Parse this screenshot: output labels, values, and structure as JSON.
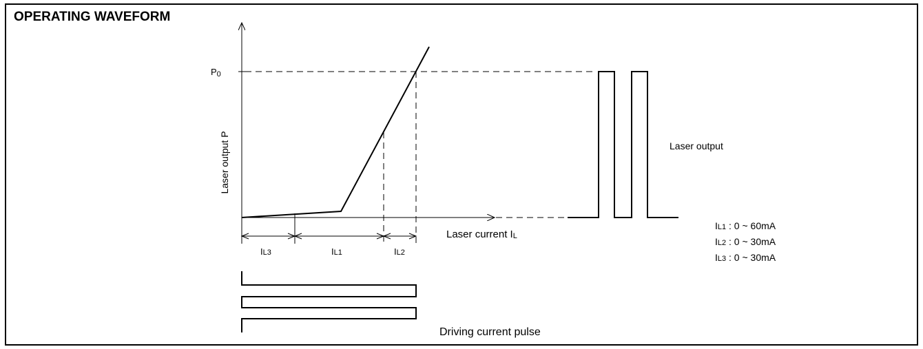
{
  "title": "OPERATING WAVEFORM",
  "labels": {
    "y_axis": "Laser output  P",
    "p0_main": "P",
    "p0_sub": "0",
    "x_axis_main": "Laser current  I",
    "x_axis_sub": "L",
    "il3_main": "I",
    "il3_sub": "L3",
    "il1_main": "I",
    "il1_sub": "L1",
    "il2_main": "I",
    "il2_sub": "L2",
    "laser_output": "Laser output",
    "driving_current_pulse": "Driving current pulse"
  },
  "ranges": [
    {
      "main": "I",
      "sub": "L1",
      "value": " : 0 ~ 60mA"
    },
    {
      "main": "I",
      "sub": "L2",
      "value": " : 0 ~ 30mA"
    },
    {
      "main": "I",
      "sub": "L3",
      "value": " : 0 ~ 30mA"
    }
  ]
}
